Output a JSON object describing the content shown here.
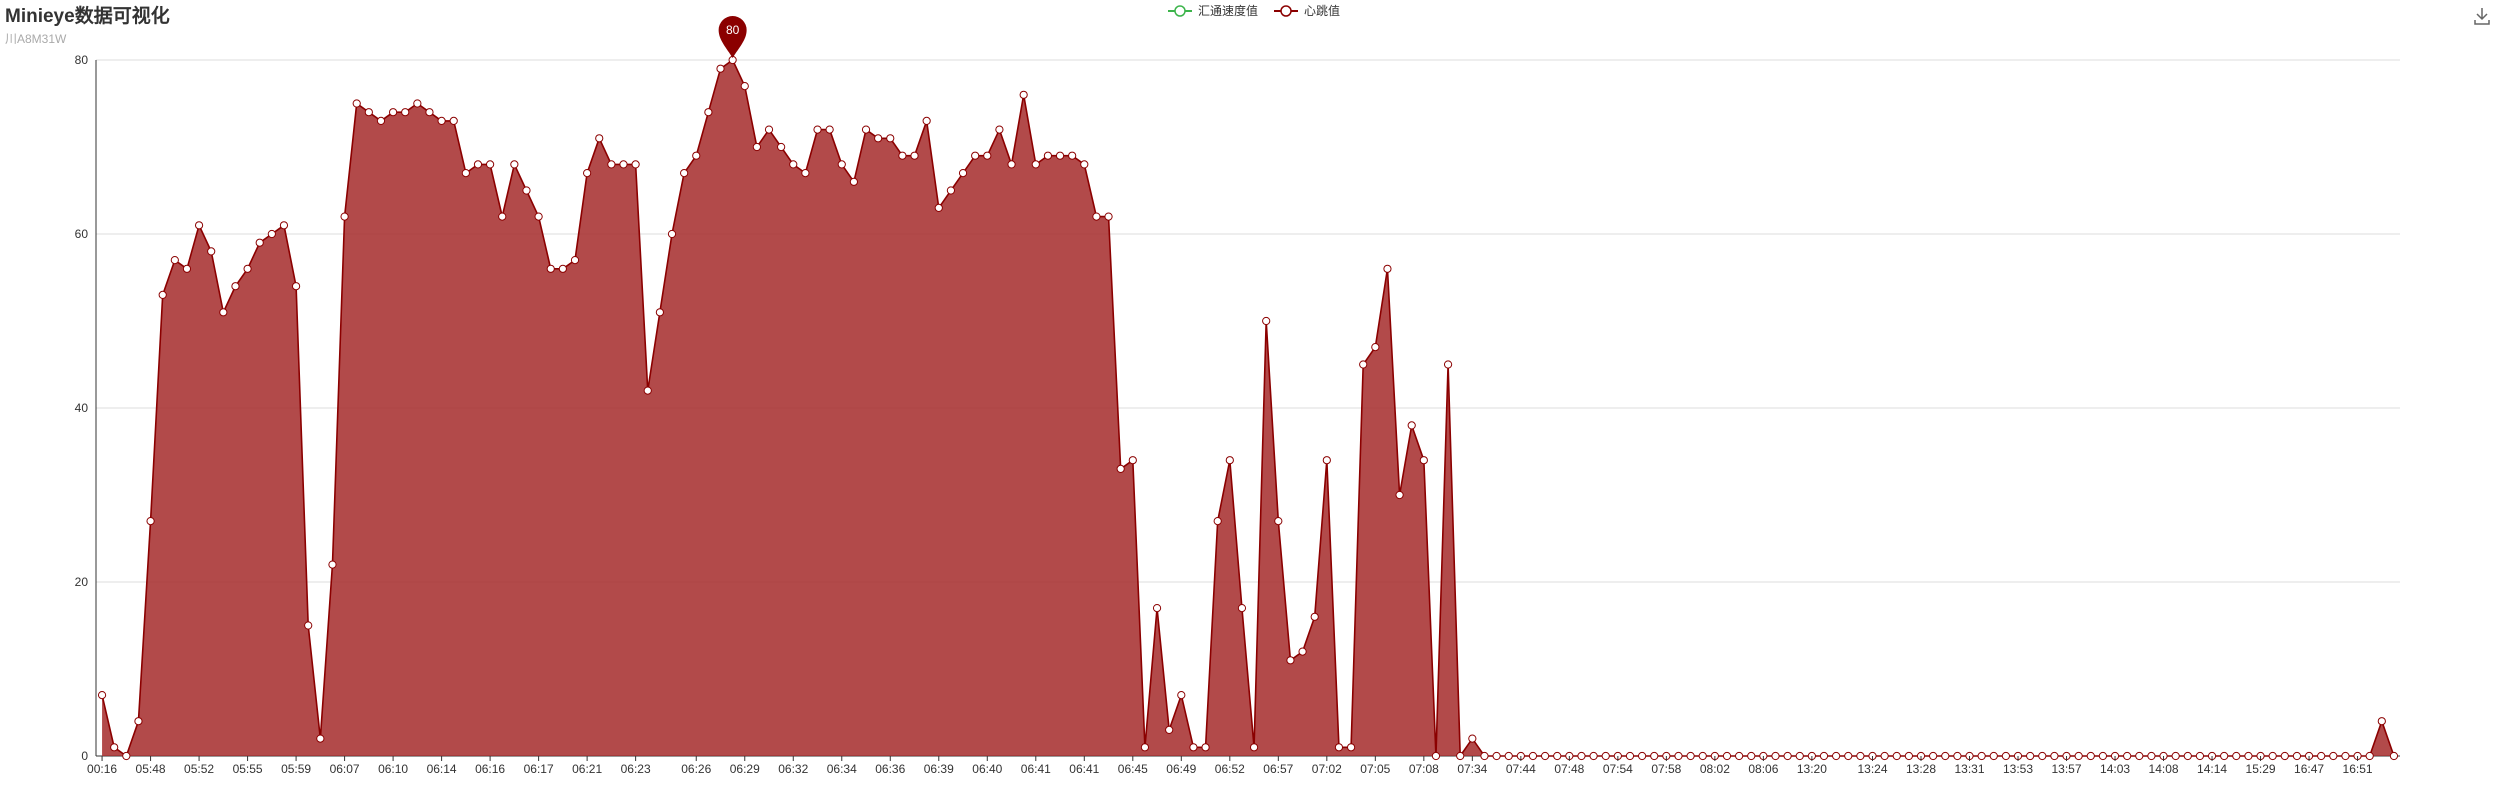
{
  "header": {
    "title": "Minieye数据可视化",
    "subtitle": "川A8M31W"
  },
  "legend": [
    {
      "name": "汇通速度值",
      "color": "#3cb44b"
    },
    {
      "name": "心跳值",
      "color": "#8b0000"
    }
  ],
  "toolbox": {
    "icon": "download-icon"
  },
  "markpoint": {
    "value": "80"
  },
  "colors": {
    "series_line": "#8b0000",
    "series_area": "#a52a2a",
    "grid": "#dddddd",
    "axis": "#333333"
  },
  "chart_data": {
    "type": "area",
    "ylim": [
      0,
      80
    ],
    "yticks": [
      "0",
      "20",
      "40",
      "60",
      "80"
    ],
    "xtick_labels": [
      "00:16",
      "05:48",
      "05:52",
      "05:55",
      "05:59",
      "06:07",
      "06:10",
      "06:14",
      "06:16",
      "06:17",
      "06:21",
      "06:23",
      "06:26",
      "06:29",
      "06:32",
      "06:34",
      "06:36",
      "06:39",
      "06:40",
      "06:41",
      "06:41",
      "06:45",
      "06:49",
      "06:52",
      "06:57",
      "07:02",
      "07:05",
      "07:08",
      "07:34",
      "07:44",
      "07:48",
      "07:54",
      "07:58",
      "08:02",
      "08:06",
      "13:20",
      "13:24",
      "13:28",
      "13:31",
      "13:53",
      "13:57",
      "14:03",
      "14:08",
      "14:14",
      "15:29",
      "16:47",
      "16:51"
    ],
    "series": [
      {
        "name": "心跳值",
        "values": [
          7,
          1,
          0,
          4,
          27,
          53,
          57,
          56,
          61,
          58,
          51,
          54,
          56,
          59,
          60,
          61,
          54,
          15,
          2,
          22,
          62,
          75,
          74,
          73,
          74,
          74,
          75,
          74,
          73,
          73,
          67,
          68,
          68,
          62,
          68,
          65,
          62,
          56,
          56,
          57,
          67,
          71,
          68,
          68,
          68,
          42,
          51,
          60,
          67,
          69,
          74,
          79,
          80,
          77,
          70,
          72,
          70,
          68,
          67,
          72,
          72,
          68,
          66,
          72,
          71,
          71,
          69,
          69,
          73,
          63,
          65,
          67,
          69,
          69,
          72,
          68,
          76,
          68,
          69,
          69,
          69,
          68,
          62,
          62,
          33,
          34,
          1,
          17,
          3,
          7,
          1,
          1,
          27,
          34,
          17,
          1,
          50,
          27,
          11,
          12,
          16,
          34,
          1,
          1,
          45,
          47,
          56,
          30,
          38,
          34,
          0,
          45,
          0,
          2,
          0,
          0,
          0,
          0,
          0,
          0,
          0,
          0,
          0,
          0,
          0,
          0,
          0,
          0,
          0,
          0,
          0,
          0,
          0,
          0,
          0,
          0,
          0,
          0,
          0,
          0,
          0,
          0,
          0,
          0,
          0,
          0,
          0,
          0,
          0,
          0,
          0,
          0,
          0,
          0,
          0,
          0,
          0,
          0,
          0,
          0,
          0,
          0,
          0,
          0,
          0,
          0,
          0,
          0,
          0,
          0,
          0,
          0,
          0,
          0,
          0,
          0,
          0,
          0,
          0,
          0,
          0,
          0,
          0,
          0,
          0,
          0,
          0,
          0,
          4,
          0
        ]
      }
    ]
  }
}
